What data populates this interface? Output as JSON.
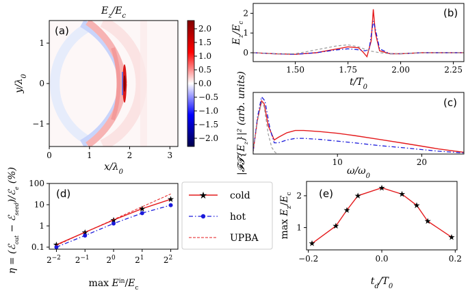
{
  "figure": {
    "colors": {
      "cold": "#e41a1c",
      "hot": "#1a1adb",
      "upba": "#e41a1c",
      "dashed_gray": "#999999"
    }
  },
  "chart_data": [
    {
      "id": "a",
      "type": "heatmap",
      "panel_label": "(a)",
      "title": "E_z/E_c",
      "xlabel": "x/λ0",
      "ylabel": "y/λ0",
      "xlim": [
        0,
        3.2
      ],
      "ylim": [
        -1.55,
        1.55
      ],
      "xticks": [
        "0",
        "1",
        "2",
        "3"
      ],
      "yticks": [
        "−1",
        "0",
        "1"
      ],
      "colorbar": {
        "ticks": [
          "2.0",
          "1.5",
          "1.0",
          "0.5",
          "0.0",
          "−0.5",
          "−1.0",
          "−1.5",
          "−2.0"
        ],
        "range": [
          -2.3,
          2.3
        ],
        "colormap": "seismic"
      }
    },
    {
      "id": "b",
      "type": "line",
      "panel_label": "(b)",
      "xlabel": "t/T0",
      "ylabel": "E_z/E_c",
      "xlim": [
        1.3,
        2.3
      ],
      "ylim": [
        -0.45,
        2.5
      ],
      "xticks": [
        "1.50",
        "1.75",
        "2.00",
        "2.25"
      ],
      "yticks": [
        "0",
        "1",
        "2"
      ],
      "series": [
        {
          "style": "red-solid",
          "x": [
            1.3,
            1.4,
            1.5,
            1.6,
            1.7,
            1.75,
            1.8,
            1.82,
            1.84,
            1.86,
            1.87,
            1.88,
            1.9,
            1.95,
            2.0,
            2.1,
            2.2,
            2.3
          ],
          "y": [
            0.0,
            -0.05,
            -0.08,
            0.0,
            0.2,
            0.3,
            0.25,
            0.05,
            -0.2,
            0.6,
            2.2,
            1.0,
            0.1,
            -0.05,
            -0.05,
            0.0,
            0.0,
            0.0
          ]
        },
        {
          "style": "blue-dashdot",
          "x": [
            1.3,
            1.4,
            1.5,
            1.6,
            1.7,
            1.75,
            1.8,
            1.83,
            1.85,
            1.87,
            1.88,
            1.9,
            1.95,
            2.0,
            2.1,
            2.2,
            2.3
          ],
          "y": [
            0.0,
            -0.05,
            -0.08,
            0.0,
            0.15,
            0.2,
            0.15,
            0.1,
            0.15,
            1.6,
            1.2,
            0.2,
            -0.05,
            -0.05,
            0.0,
            0.0,
            0.0
          ]
        },
        {
          "style": "gray-dashed",
          "x": [
            1.3,
            1.4,
            1.5,
            1.6,
            1.7,
            1.75,
            1.8,
            1.85,
            1.9,
            1.95,
            2.0,
            2.1,
            2.2,
            2.3
          ],
          "y": [
            0.0,
            -0.05,
            -0.05,
            0.15,
            0.35,
            0.4,
            0.3,
            0.1,
            0.0,
            -0.05,
            -0.05,
            0.0,
            0.0,
            0.0
          ]
        }
      ]
    },
    {
      "id": "c",
      "type": "line",
      "panel_label": "(c)",
      "xlabel": "ω/ω0",
      "ylabel": "|FT{E_z}|² (arb. units)",
      "xlim": [
        0,
        25
      ],
      "ylim": [
        0,
        1.1
      ],
      "xticks": [
        "10",
        "20"
      ],
      "series": [
        {
          "style": "red-solid",
          "x": [
            0,
            0.5,
            1,
            1.3,
            1.8,
            2.5,
            3,
            4,
            5,
            6,
            8,
            10,
            12,
            15,
            18,
            20,
            22,
            25
          ],
          "y": [
            0.05,
            0.6,
            0.95,
            0.9,
            0.5,
            0.25,
            0.3,
            0.38,
            0.42,
            0.42,
            0.4,
            0.37,
            0.33,
            0.26,
            0.19,
            0.14,
            0.09,
            0.03
          ]
        },
        {
          "style": "blue-dashdot",
          "x": [
            0,
            0.5,
            1,
            1.4,
            2,
            2.5,
            3,
            4,
            5,
            6,
            8,
            10,
            12,
            15,
            18,
            20,
            22,
            25
          ],
          "y": [
            0.05,
            0.65,
            1.02,
            0.95,
            0.45,
            0.2,
            0.2,
            0.25,
            0.28,
            0.28,
            0.26,
            0.23,
            0.2,
            0.15,
            0.11,
            0.08,
            0.05,
            0.02
          ]
        },
        {
          "style": "gray-dashed",
          "x": [
            0,
            0.5,
            1,
            1.3,
            1.8,
            2.2,
            2.6,
            3
          ],
          "y": [
            0.05,
            0.6,
            0.92,
            0.85,
            0.35,
            0.12,
            0.03,
            0.0
          ]
        }
      ]
    },
    {
      "id": "d",
      "type": "line",
      "panel_label": "(d)",
      "xlabel": "max E^in/E_c",
      "ylabel": "η = (ℰ_out − ℰ_seed)/ℰ_e (%)",
      "log_x_base2": true,
      "x": [
        -2,
        -1,
        0,
        1,
        2
      ],
      "xticks": [
        "2−2",
        "2−1",
        "20",
        "21",
        "22"
      ],
      "yticks": [
        "0.1",
        "1",
        "10",
        "100"
      ],
      "ylim": [
        0.08,
        100
      ],
      "series": [
        {
          "name": "cold",
          "style": "red-solid-star",
          "y": [
            0.13,
            0.5,
            1.9,
            6.5,
            18
          ]
        },
        {
          "name": "hot",
          "style": "blue-dashdot-dot",
          "y": [
            0.1,
            0.35,
            1.3,
            4.0,
            9.5
          ]
        },
        {
          "name": "UPBA",
          "style": "red-dashed",
          "y": [
            0.12,
            0.5,
            2.0,
            8.0,
            32
          ]
        }
      ],
      "legend": {
        "entries": [
          "cold",
          "hot",
          "UPBA"
        ],
        "placement": "center"
      }
    },
    {
      "id": "e",
      "type": "line",
      "panel_label": "(e)",
      "xlabel": "t_d/T0",
      "ylabel": "max E_z/E_c",
      "xlim": [
        -0.2,
        0.2
      ],
      "ylim": [
        0.3,
        2.45
      ],
      "xticks": [
        "−0.2",
        "0.0",
        "0.2"
      ],
      "yticks": [
        "1",
        "2"
      ],
      "x": [
        -0.19,
        -0.125,
        -0.095,
        -0.065,
        0.0,
        0.055,
        0.095,
        0.125,
        0.19
      ],
      "series": [
        {
          "style": "red-solid-star",
          "y": [
            0.5,
            1.05,
            1.55,
            2.0,
            2.25,
            2.05,
            1.7,
            1.2,
            0.7
          ]
        }
      ]
    }
  ]
}
